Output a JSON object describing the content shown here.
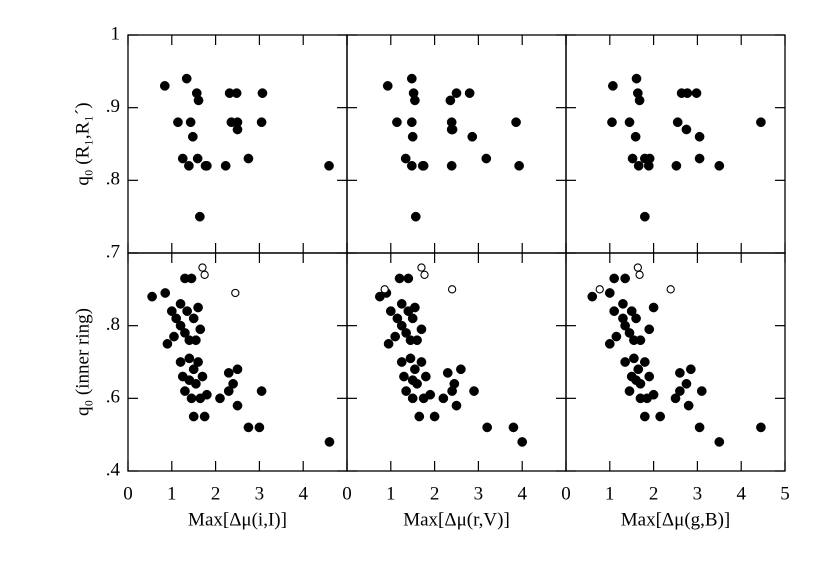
{
  "chart_data": [
    {
      "type": "scatter",
      "ylabel": "q₀ (R₁,R₁´)",
      "xtick_labels": false,
      "ytick_labels": true,
      "xlim": [
        0,
        5
      ],
      "ylim": [
        0.7,
        1.0
      ],
      "xticks": [
        0,
        1,
        2,
        3,
        4,
        5
      ],
      "yticks": [
        {
          "value": 0.7,
          "label": ".7"
        },
        {
          "value": 0.8,
          "label": ".8"
        },
        {
          "value": 0.9,
          "label": ".9"
        },
        1
      ],
      "series": [
        {
          "marker": "filled",
          "color": "#000000",
          "x": [
            0.84,
            1.34,
            1.57,
            1.61,
            1.14,
            1.43,
            1.48,
            1.77,
            1.25,
            1.39,
            1.59,
            1.8,
            2.23,
            1.64,
            2.32,
            2.48,
            3.07,
            2.36,
            2.5,
            2.5,
            3.05,
            2.75,
            4.59
          ],
          "values": [
            0.93,
            0.94,
            0.92,
            0.91,
            0.88,
            0.88,
            0.86,
            0.82,
            0.83,
            0.82,
            0.83,
            0.82,
            0.82,
            0.75,
            0.92,
            0.92,
            0.92,
            0.88,
            0.87,
            0.88,
            0.88,
            0.83,
            0.82
          ]
        }
      ]
    },
    {
      "type": "scatter",
      "xtick_labels": false,
      "ytick_labels": false,
      "xlim": [
        0,
        5
      ],
      "ylim": [
        0.7,
        1.0
      ],
      "xticks": [
        0,
        1,
        2,
        3,
        4,
        5
      ],
      "yticks": [
        0.7,
        0.8,
        0.9,
        1
      ],
      "series": [
        {
          "marker": "filled",
          "color": "#000000",
          "x": [
            0.93,
            1.48,
            1.52,
            1.55,
            1.14,
            1.48,
            1.5,
            1.75,
            1.34,
            1.48,
            1.73,
            2.39,
            2.39,
            1.57,
            2.36,
            2.5,
            2.8,
            2.39,
            2.41,
            2.86,
            3.18,
            3.93,
            3.86
          ],
          "values": [
            0.93,
            0.94,
            0.92,
            0.91,
            0.88,
            0.88,
            0.86,
            0.82,
            0.83,
            0.82,
            0.82,
            0.82,
            0.87,
            0.75,
            0.91,
            0.92,
            0.92,
            0.88,
            0.87,
            0.86,
            0.83,
            0.82,
            0.88
          ]
        }
      ]
    },
    {
      "type": "scatter",
      "xtick_labels": false,
      "ytick_labels": false,
      "xlim": [
        0,
        5
      ],
      "ylim": [
        0.7,
        1.0
      ],
      "xticks": [
        0,
        1,
        2,
        3,
        4,
        5
      ],
      "yticks": [
        0.7,
        0.8,
        0.9,
        1
      ],
      "series": [
        {
          "marker": "filled",
          "color": "#000000",
          "x": [
            1.07,
            1.61,
            1.64,
            1.68,
            1.05,
            1.45,
            1.59,
            1.8,
            1.52,
            1.66,
            1.89,
            1.91,
            2.52,
            1.8,
            2.64,
            2.77,
            2.98,
            2.55,
            2.75,
            3.05,
            3.05,
            3.5,
            4.45
          ],
          "values": [
            0.93,
            0.94,
            0.92,
            0.91,
            0.88,
            0.88,
            0.86,
            0.83,
            0.83,
            0.82,
            0.82,
            0.83,
            0.82,
            0.75,
            0.92,
            0.92,
            0.92,
            0.88,
            0.87,
            0.86,
            0.83,
            0.82,
            0.88
          ]
        }
      ]
    },
    {
      "type": "scatter",
      "ylabel": "q₀ (inner ring)",
      "xlabel": "Max[Δμ(i,I)]",
      "xtick_labels": true,
      "ytick_labels": true,
      "xlim": [
        0,
        5
      ],
      "ylim": [
        0.4,
        1.0
      ],
      "xticks": [
        0,
        1,
        2,
        3,
        4
      ],
      "yticks": [
        {
          "value": 0.4,
          "label": ".4"
        },
        {
          "value": 0.6,
          "label": ".6"
        },
        {
          "value": 0.8,
          "label": ".8"
        }
      ],
      "series": [
        {
          "marker": "filled",
          "color": "#000000",
          "x": [
            0.55,
            0.85,
            1.0,
            1.1,
            1.2,
            0.9,
            1.05,
            1.2,
            1.3,
            1.45,
            1.35,
            1.5,
            1.55,
            1.65,
            1.3,
            1.4,
            1.6,
            1.2,
            1.4,
            1.5,
            1.6,
            1.3,
            1.4,
            1.55,
            1.7,
            1.8,
            1.45,
            1.25,
            1.65,
            1.75,
            2.1,
            2.3,
            2.4,
            2.5,
            2.5,
            2.3,
            2.75,
            3.0,
            3.05,
            4.6,
            1.5
          ],
          "values": [
            0.88,
            0.89,
            0.84,
            0.82,
            0.8,
            0.75,
            0.77,
            0.86,
            0.93,
            0.93,
            0.84,
            0.82,
            0.76,
            0.79,
            0.78,
            0.76,
            0.85,
            0.7,
            0.71,
            0.68,
            0.7,
            0.62,
            0.65,
            0.64,
            0.66,
            0.61,
            0.6,
            0.66,
            0.6,
            0.55,
            0.6,
            0.67,
            0.64,
            0.68,
            0.58,
            0.62,
            0.52,
            0.52,
            0.62,
            0.48,
            0.55
          ]
        },
        {
          "marker": "open",
          "color": "#000000",
          "x": [
            1.7,
            1.75,
            2.45
          ],
          "values": [
            0.96,
            0.94,
            0.89
          ]
        }
      ]
    },
    {
      "type": "scatter",
      "xlabel": "Max[Δμ(r,V)]",
      "xtick_labels": true,
      "ytick_labels": false,
      "xlim": [
        0,
        5
      ],
      "ylim": [
        0.4,
        1.0
      ],
      "xticks": [
        0,
        1,
        2,
        3,
        4
      ],
      "yticks": [
        0.4,
        0.6,
        0.8
      ],
      "series": [
        {
          "marker": "filled",
          "color": "#000000",
          "x": [
            0.75,
            0.9,
            1.0,
            1.15,
            1.25,
            0.95,
            1.1,
            1.25,
            1.2,
            1.4,
            1.4,
            1.5,
            1.6,
            1.7,
            1.35,
            1.45,
            1.55,
            1.25,
            1.45,
            1.55,
            1.7,
            1.35,
            1.5,
            1.6,
            1.8,
            1.9,
            1.5,
            1.3,
            1.75,
            2.0,
            2.2,
            2.3,
            2.45,
            2.6,
            2.5,
            2.4,
            3.2,
            3.8,
            2.9,
            4.0,
            1.65
          ],
          "values": [
            0.88,
            0.89,
            0.84,
            0.82,
            0.8,
            0.75,
            0.77,
            0.86,
            0.93,
            0.93,
            0.84,
            0.82,
            0.76,
            0.79,
            0.78,
            0.76,
            0.85,
            0.7,
            0.71,
            0.68,
            0.7,
            0.62,
            0.65,
            0.64,
            0.66,
            0.61,
            0.6,
            0.66,
            0.6,
            0.55,
            0.6,
            0.67,
            0.64,
            0.68,
            0.58,
            0.62,
            0.52,
            0.52,
            0.62,
            0.48,
            0.55
          ]
        },
        {
          "marker": "open",
          "color": "#000000",
          "x": [
            0.86,
            1.7,
            1.77,
            2.4
          ],
          "values": [
            0.9,
            0.96,
            0.94,
            0.9
          ]
        }
      ]
    },
    {
      "type": "scatter",
      "xlabel": "Max[Δμ(g,B)]",
      "xtick_labels": true,
      "ytick_labels": false,
      "xlim": [
        0,
        5
      ],
      "ylim": [
        0.4,
        1.0
      ],
      "xticks": [
        0,
        1,
        2,
        3,
        4,
        5
      ],
      "yticks": [
        0.4,
        0.6,
        0.8
      ],
      "series": [
        {
          "marker": "filled",
          "color": "#000000",
          "x": [
            0.6,
            1.0,
            1.1,
            1.3,
            1.35,
            1.0,
            1.15,
            1.3,
            1.1,
            1.35,
            1.5,
            1.6,
            1.7,
            1.9,
            1.45,
            1.55,
            2.0,
            1.35,
            1.55,
            1.65,
            1.8,
            1.45,
            1.6,
            1.7,
            1.9,
            2.0,
            1.7,
            1.5,
            1.85,
            2.15,
            2.5,
            2.6,
            2.75,
            2.85,
            2.8,
            2.6,
            3.05,
            4.45,
            3.1,
            3.5,
            1.8
          ],
          "values": [
            0.88,
            0.89,
            0.84,
            0.82,
            0.8,
            0.75,
            0.77,
            0.86,
            0.93,
            0.93,
            0.84,
            0.82,
            0.76,
            0.79,
            0.78,
            0.76,
            0.85,
            0.7,
            0.71,
            0.68,
            0.7,
            0.62,
            0.65,
            0.64,
            0.66,
            0.61,
            0.6,
            0.66,
            0.6,
            0.55,
            0.6,
            0.67,
            0.64,
            0.68,
            0.58,
            0.62,
            0.52,
            0.52,
            0.62,
            0.48,
            0.55
          ]
        },
        {
          "marker": "open",
          "color": "#000000",
          "x": [
            0.77,
            1.64,
            1.68,
            2.39
          ],
          "values": [
            0.9,
            0.96,
            0.94,
            0.9
          ]
        }
      ]
    }
  ]
}
